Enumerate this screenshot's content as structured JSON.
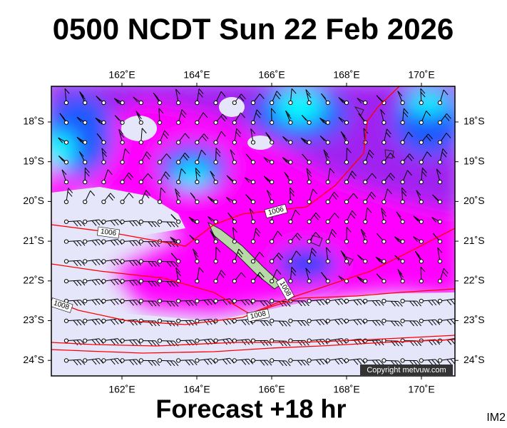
{
  "title": "0500 NCDT Sun 22 Feb 2026",
  "map": {
    "lon_labels": [
      "162˚E",
      "164˚E",
      "166˚E",
      "168˚E",
      "170˚E"
    ],
    "lat_labels": [
      "18˚S",
      "19˚S",
      "20˚S",
      "21˚S",
      "22˚S",
      "23˚S",
      "24˚S"
    ],
    "isobar_labels": [
      "1006",
      "1006",
      "1008",
      "1008",
      "1008"
    ]
  },
  "copyright": "Copyright metvuw.com",
  "footer": "Forecast +18 hr",
  "image_id": "IM2"
}
